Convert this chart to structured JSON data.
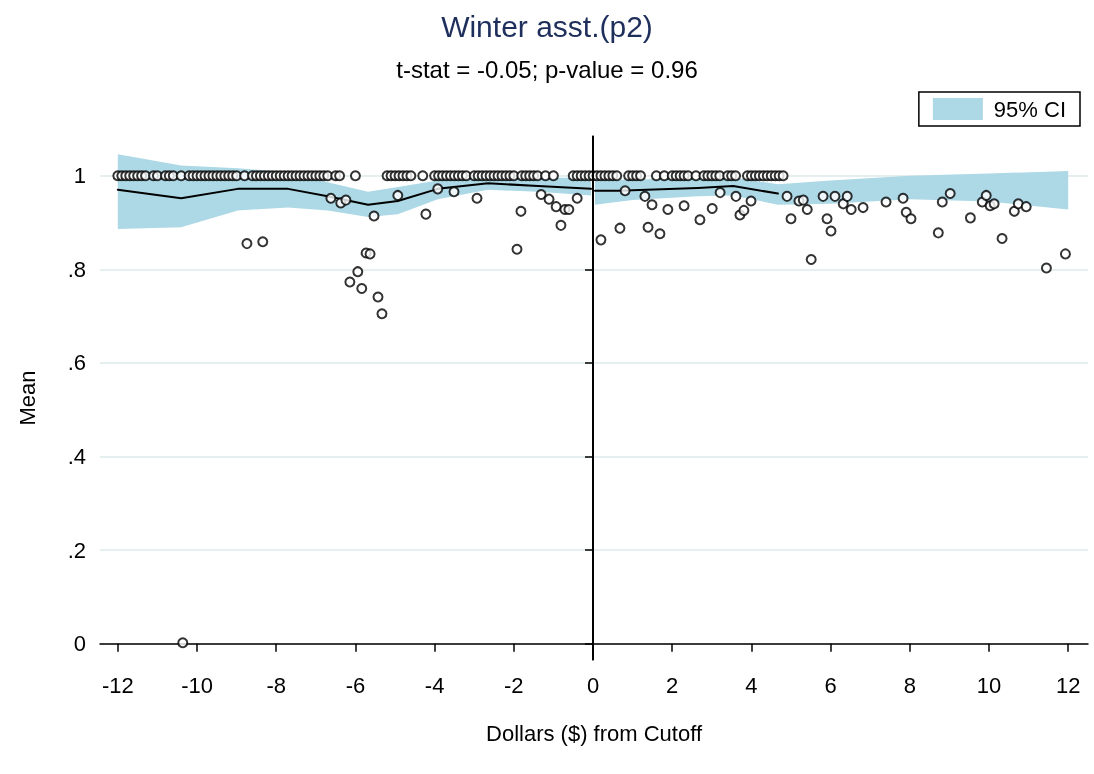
{
  "chart_data": {
    "type": "scatter",
    "title": "Winter asst.(p2)",
    "subtitle": "t-stat = -0.05; p-value = 0.96",
    "xlabel": "Dollars ($) from Cutoff",
    "ylabel": "Mean",
    "xlim": [
      -12.45,
      12.5
    ],
    "ylim": [
      -0.035,
      1.085
    ],
    "xticks": [
      -12,
      -10,
      -8,
      -6,
      -4,
      -2,
      0,
      2,
      4,
      6,
      8,
      10,
      12
    ],
    "yticks": [
      0,
      {
        "value": 0.2,
        "label": ".2"
      },
      {
        "value": 0.4,
        "label": ".4"
      },
      {
        "value": 0.6,
        "label": ".6"
      },
      {
        "value": 0.8,
        "label": ".8"
      },
      1
    ],
    "grid": "y",
    "legend": "top right",
    "marker": "circle",
    "ref_lines": [
      {
        "axis": "x",
        "value": 0,
        "color": "#000000"
      }
    ],
    "series": [
      {
        "name": "95% CI",
        "type": "area",
        "color": "#add8e6",
        "x": [
          -12,
          -10.4,
          -8.97,
          -7.7,
          -6.7,
          -5.68,
          -4.93,
          -3.92,
          -2.65,
          -1.39,
          -0.05
        ],
        "values": [
          null,
          null,
          null,
          null,
          null,
          null,
          null,
          null,
          null,
          null,
          null
        ],
        "lower": [
          0.886,
          0.89,
          0.926,
          0.932,
          0.926,
          0.912,
          0.918,
          0.95,
          0.97,
          0.966,
          0.958
        ],
        "upper": [
          1.046,
          1.022,
          1.016,
          1.008,
          0.986,
          0.966,
          0.976,
          0.99,
          1.0,
          0.996,
          0.996
        ]
      },
      {
        "type": "area",
        "color": "#add8e6",
        "x": [
          0.05,
          1.0,
          2.65,
          3.54,
          4.67,
          6,
          8,
          10,
          12
        ],
        "values": [
          null,
          null,
          null,
          null,
          null,
          null,
          null,
          null,
          null
        ],
        "lower": [
          0.938,
          0.948,
          0.956,
          0.958,
          0.938,
          0.94,
          0.95,
          0.945,
          0.928
        ],
        "upper": [
          0.99,
          0.992,
          0.994,
          0.996,
          0.982,
          0.99,
          1.0,
          1.005,
          1.01
        ]
      },
      {
        "type": "line",
        "color": "#000000",
        "marker": "none",
        "x": [
          -12,
          -10.4,
          -8.97,
          -7.7,
          -6.7,
          -5.68,
          -4.93,
          -3.92,
          -2.65,
          -1.39,
          -0.05,
          0,
          0.05,
          0.63,
          2.65,
          3.54,
          4.67
        ],
        "values": [
          0.97,
          0.952,
          0.972,
          0.972,
          0.956,
          0.938,
          0.946,
          0.972,
          0.984,
          0.978,
          0.972,
          null,
          0.968,
          0.968,
          0.974,
          0.978,
          0.962
        ]
      },
      {
        "color": "#000000",
        "x": [
          -12,
          -11.9,
          -11.8,
          -11.7,
          -11.6,
          -11.5,
          -11.4,
          -11.3,
          -11.1,
          -11.0,
          -10.8,
          -10.7,
          -10.6,
          -10.4,
          -10.2,
          -10.1,
          -10.0,
          -9.9,
          -9.8,
          -9.7,
          -9.6,
          -9.5,
          -9.4,
          -9.3,
          -9.2,
          -9.1,
          -9.0,
          -8.8,
          -8.6,
          -8.5,
          -8.4,
          -8.3,
          -8.2,
          -8.1,
          -8.0,
          -7.9,
          -7.8,
          -7.7,
          -7.6,
          -7.5,
          -7.4,
          -7.3,
          -7.2,
          -7.1,
          -7.0,
          -6.9,
          -6.8,
          -6.7,
          -6.5,
          -6.4,
          -6.0,
          -5.2,
          -5.1,
          -5.0,
          -4.9,
          -4.8,
          -4.7,
          -4.6,
          -4.3,
          -4.0,
          -3.9,
          -3.8,
          -3.7,
          -3.6,
          -3.5,
          -3.4,
          -3.3,
          -3.2,
          -3.0,
          -2.9,
          -2.8,
          -2.7,
          -2.6,
          -2.5,
          -2.4,
          -2.3,
          -2.2,
          -2.1,
          -2.0,
          -1.8,
          -1.7,
          -1.6,
          -1.5,
          -1.4,
          -1.2,
          -1.0,
          -0.5,
          -0.4,
          -0.3,
          -0.2,
          -0.1,
          0,
          0.1,
          0.2,
          0.3,
          0.4,
          0.5,
          0.6,
          0.9,
          1.0,
          1.1,
          1.2,
          1.6,
          1.8,
          2.0,
          2.1,
          2.2,
          2.3,
          2.4,
          2.6,
          2.8,
          2.9,
          3.0,
          3.1,
          3.2,
          3.4,
          3.5,
          3.6,
          3.9,
          4.0,
          4.1,
          4.2,
          4.3,
          4.4,
          4.5,
          4.6,
          4.7,
          4.8
        ],
        "values": [
          1,
          1,
          1,
          1,
          1,
          1,
          1,
          1,
          1,
          1,
          1,
          1,
          1,
          1,
          1,
          1,
          1,
          1,
          1,
          1,
          1,
          1,
          1,
          1,
          1,
          1,
          1,
          1,
          1,
          1,
          1,
          1,
          1,
          1,
          1,
          1,
          1,
          1,
          1,
          1,
          1,
          1,
          1,
          1,
          1,
          1,
          1,
          1,
          1,
          1,
          1,
          1,
          1,
          1,
          1,
          1,
          1,
          1,
          1,
          1,
          1,
          1,
          1,
          1,
          1,
          1,
          1,
          1,
          1,
          1,
          1,
          1,
          1,
          1,
          1,
          1,
          1,
          1,
          1,
          1,
          1,
          1,
          1,
          1,
          1,
          1,
          1,
          1,
          1,
          1,
          1,
          1,
          1,
          1,
          1,
          1,
          1,
          1,
          1,
          1,
          1,
          1,
          1,
          1,
          1,
          1,
          1,
          1,
          1,
          1,
          1,
          1,
          1,
          1,
          1,
          1,
          1,
          1,
          1,
          1,
          1,
          1,
          1,
          1,
          1,
          1,
          1,
          1
        ]
      },
      {
        "color": "#000000",
        "x": [
          -10.36,
          -8.74,
          -8.34,
          -6.62,
          -6.37,
          -6.24,
          -5.53,
          -4.93,
          -4.22,
          -3.92,
          -3.51,
          -2.93,
          -1.82,
          -1.92,
          -1.31,
          -1.11,
          -0.93,
          -0.71,
          -0.61,
          -0.81,
          -0.4,
          -5.73,
          -5.63,
          -5.94,
          -6.14,
          -5.84,
          -5.43,
          -5.33,
          0.2,
          0.81,
          0.68,
          1.31,
          1.39,
          1.49,
          1.69,
          1.89,
          2.3,
          2.7,
          3.01,
          3.21,
          3.61,
          3.71,
          3.81,
          3.99,
          4.9,
          5.0,
          5.2,
          5.31,
          5.41,
          5.51,
          5.81,
          5.91,
          6.01,
          6.11,
          6.32,
          6.42,
          6.52,
          6.82,
          7.4,
          7.83,
          7.91,
          8.03,
          8.72,
          8.82,
          9.02,
          9.53,
          9.83,
          9.93,
          10.03,
          10.13,
          10.33,
          10.64,
          10.74,
          10.94,
          11.45,
          11.93
        ],
        "values": [
          0.002,
          0.855,
          0.859,
          0.952,
          0.942,
          0.948,
          0.914,
          0.958,
          0.918,
          0.972,
          0.966,
          0.952,
          0.924,
          0.843,
          0.96,
          0.95,
          0.934,
          0.928,
          0.928,
          0.894,
          0.952,
          0.835,
          0.833,
          0.795,
          0.773,
          0.759,
          0.741,
          0.705,
          0.863,
          0.968,
          0.888,
          0.956,
          0.89,
          0.938,
          0.876,
          0.928,
          0.936,
          0.906,
          0.93,
          0.964,
          0.956,
          0.916,
          0.926,
          0.946,
          0.956,
          0.908,
          0.946,
          0.948,
          0.928,
          0.821,
          0.956,
          0.908,
          0.882,
          0.956,
          0.94,
          0.956,
          0.928,
          0.932,
          0.944,
          0.952,
          0.922,
          0.908,
          0.878,
          0.944,
          0.962,
          0.91,
          0.944,
          0.958,
          0.936,
          0.94,
          0.866,
          0.924,
          0.94,
          0.934,
          0.803,
          0.833
        ]
      }
    ]
  }
}
